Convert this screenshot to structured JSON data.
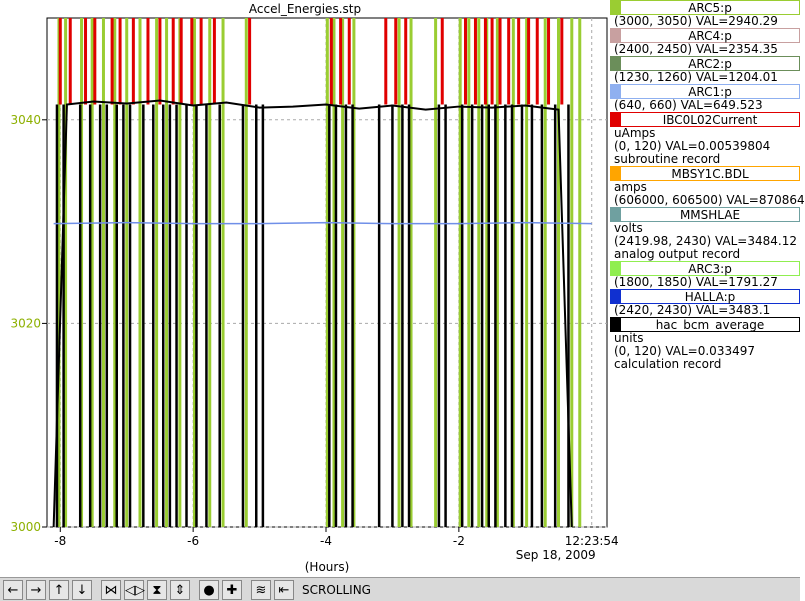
{
  "window": {
    "title": "Accel_Energies.stp"
  },
  "chart_data": {
    "type": "line",
    "title": "Accel_Energies.stp",
    "xlabel": "(Hours)",
    "x_ticks": [
      "-8",
      "-6",
      "-4",
      "-2"
    ],
    "x_end_label": "12:23:54",
    "x_end_date": "Sep 18, 2009",
    "xlim": [
      -8.2,
      0.23
    ],
    "ylabel": "",
    "y_ticks": [
      "3000",
      "3020",
      "3040"
    ],
    "ylim": [
      3000,
      3050
    ],
    "grid": true,
    "legend_position": "right",
    "series": [
      {
        "name": "hac_bcm_average",
        "color": "#000000",
        "x": [
          -8.1,
          -7.9,
          -7.5,
          -7.0,
          -6.5,
          -6.0,
          -5.5,
          -5.0,
          -4.5,
          -4.0,
          -3.5,
          -3.0,
          -2.5,
          -2.0,
          -1.5,
          -1.0,
          -0.5,
          -0.3
        ],
        "y": [
          3000,
          3041.5,
          3041.8,
          3041.6,
          3041.9,
          3041.4,
          3041.7,
          3041.2,
          3041.3,
          3041.5,
          3041.1,
          3041.4,
          3041.0,
          3041.3,
          3041.2,
          3041.4,
          3041.0,
          3000
        ]
      },
      {
        "name": "MMSHLAE",
        "color": "#6f8fe8",
        "x": [
          -8.1,
          -7.0,
          -6.0,
          -5.0,
          -4.0,
          -3.0,
          -2.0,
          -1.0,
          0.0
        ],
        "y": [
          3029.8,
          3029.9,
          3029.8,
          3029.8,
          3029.9,
          3029.8,
          3029.8,
          3029.9,
          3029.8
        ]
      }
    ],
    "drop_times": [
      -8.05,
      -7.95,
      -7.7,
      -7.55,
      -7.4,
      -7.3,
      -7.15,
      -7.05,
      -6.95,
      -6.75,
      -6.6,
      -6.45,
      -6.35,
      -6.25,
      -6.1,
      -5.95,
      -5.8,
      -5.6,
      -5.25,
      -5.05,
      -4.95,
      -3.95,
      -3.85,
      -3.7,
      -3.6,
      -3.2,
      -3.0,
      -2.85,
      -2.75,
      -2.3,
      -2.2,
      -1.95,
      -1.8,
      -1.65,
      -1.55,
      -1.45,
      -1.3,
      -1.2,
      -1.05,
      -0.9,
      -0.75,
      -0.55,
      -0.35
    ],
    "red_spike_times": [
      -8.0,
      -7.85,
      -7.62,
      -7.48,
      -7.22,
      -7.1,
      -6.9,
      -6.68,
      -6.5,
      -6.3,
      -6.18,
      -6.02,
      -5.88,
      -5.68,
      -5.15,
      -3.92,
      -3.78,
      -3.65,
      -3.1,
      -2.95,
      -2.8,
      -2.25,
      -1.9,
      -1.75,
      -1.6,
      -1.5,
      -1.38,
      -1.25,
      -1.1,
      -0.95,
      -0.82,
      -0.65,
      -0.45
    ],
    "green_spike_times": [
      -8.02,
      -7.92,
      -7.68,
      -7.52,
      -7.35,
      -7.18,
      -7.0,
      -6.8,
      -6.55,
      -6.4,
      -6.2,
      -5.98,
      -5.75,
      -5.55,
      -5.2,
      -3.98,
      -3.88,
      -3.75,
      -3.58,
      -2.9,
      -2.72,
      -2.35,
      -1.98,
      -1.85,
      -1.7,
      -1.58,
      -1.42,
      -1.18,
      -0.98,
      -0.7,
      -0.5,
      -0.3,
      -0.18
    ]
  },
  "legend": [
    {
      "name": "ARC5:p",
      "color": "#9acd32",
      "lines": [
        "(3000, 3050) VAL=2940.29"
      ]
    },
    {
      "name": "ARC4:p",
      "color": "#c8a0a0",
      "lines": [
        "(2400, 2450) VAL=2354.35"
      ]
    },
    {
      "name": "ARC2:p",
      "color": "#6b8e5a",
      "lines": [
        "(1230, 1260) VAL=1204.01"
      ]
    },
    {
      "name": "ARC1:p",
      "color": "#8fb0f0",
      "lines": [
        "(640, 660) VAL=649.523"
      ]
    },
    {
      "name": "IBC0L02Current",
      "color": "#e00000",
      "lines": [
        "uAmps",
        "(0, 120) VAL=0.00539804",
        "subroutine record"
      ]
    },
    {
      "name": "MBSY1C.BDL",
      "color": "#ffa500",
      "lines": [
        "amps",
        "(606000, 606500) VAL=870864"
      ]
    },
    {
      "name": "MMSHLAE",
      "color": "#6fa0a0",
      "lines": [
        "volts",
        "(2419.98, 2430)  VAL=3484.12",
        "analog output record"
      ]
    },
    {
      "name": "ARC3:p",
      "color": "#90ee50",
      "lines": [
        "(1800, 1850) VAL=1791.27"
      ]
    },
    {
      "name": "HALLA:p",
      "color": "#1030d0",
      "lines": [
        "(2420, 2430) VAL=3483.1"
      ]
    },
    {
      "name": "hac_bcm_average",
      "color": "#000000",
      "lines": [
        "units",
        "(0, 120) VAL=0.033497",
        "calculation record"
      ]
    }
  ],
  "toolbar": {
    "buttons": [
      {
        "icon": "pan-left-icon",
        "glyph": "←"
      },
      {
        "icon": "pan-right-icon",
        "glyph": "→"
      },
      {
        "icon": "pan-up-icon",
        "glyph": "↑"
      },
      {
        "icon": "pan-down-icon",
        "glyph": "↓"
      },
      {
        "icon": "zoom-in-x-icon",
        "glyph": "⋈"
      },
      {
        "icon": "zoom-out-x-icon",
        "glyph": "◁▷"
      },
      {
        "icon": "zoom-in-y-icon",
        "glyph": "⧗"
      },
      {
        "icon": "zoom-out-y-icon",
        "glyph": "⇕"
      },
      {
        "icon": "stop-icon",
        "glyph": "●"
      },
      {
        "icon": "add-icon",
        "glyph": "✚"
      },
      {
        "icon": "config-icon",
        "glyph": "≋"
      },
      {
        "icon": "back-icon",
        "glyph": "⇤"
      }
    ],
    "mode_label": "SCROLLING"
  }
}
